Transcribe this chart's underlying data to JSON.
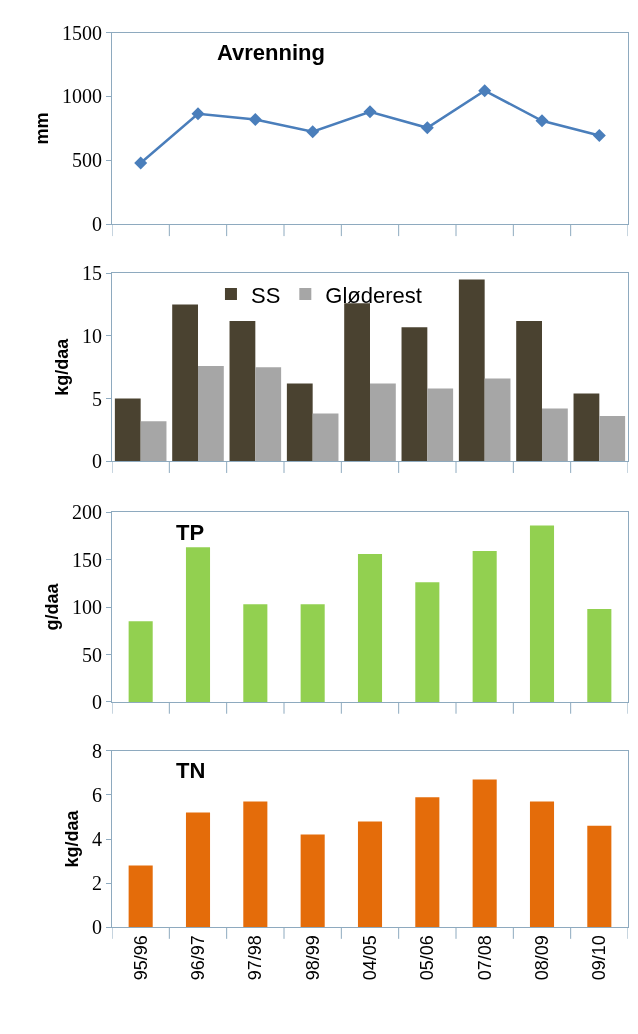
{
  "chart_data": [
    {
      "type": "line",
      "title": "Avrenning",
      "ylabel": "mm",
      "categories": [
        null,
        null,
        null,
        null,
        null,
        null,
        null,
        null,
        null
      ],
      "ylim": [
        0,
        1500
      ],
      "yticks": [
        0,
        500,
        1000,
        1500
      ],
      "marker": "diamond",
      "tick_labels": "y",
      "series": [
        {
          "color": "#4a7ebb",
          "values": [
            480,
            865,
            820,
            725,
            880,
            755,
            1045,
            810,
            695
          ]
        }
      ]
    },
    {
      "type": "bar",
      "ylabel": "kg/daa",
      "categories": [
        null,
        null,
        null,
        null,
        null,
        null,
        null,
        null,
        null
      ],
      "ylim": [
        0,
        15
      ],
      "yticks": [
        0,
        5,
        10,
        15
      ],
      "tick_labels": "y",
      "legend": "top",
      "series": [
        {
          "name": "SS",
          "color": "#4a4230",
          "values": [
            5.0,
            12.5,
            11.2,
            6.2,
            12.6,
            10.7,
            14.5,
            11.2,
            5.4
          ]
        },
        {
          "name": "Gløderest",
          "color": "#a6a6a6",
          "values": [
            3.2,
            7.6,
            7.5,
            3.8,
            6.2,
            5.8,
            6.6,
            4.2,
            3.6
          ]
        }
      ]
    },
    {
      "type": "bar",
      "title": "TP",
      "ylabel": "g/daa",
      "categories": [
        null,
        null,
        null,
        null,
        null,
        null,
        null,
        null,
        null
      ],
      "ylim": [
        0,
        200
      ],
      "yticks": [
        0,
        50,
        100,
        150,
        200
      ],
      "tick_labels": "y",
      "series": [
        {
          "color": "#92d050",
          "values": [
            85,
            163,
            103,
            103,
            156,
            126,
            159,
            186,
            98
          ]
        }
      ]
    },
    {
      "type": "bar",
      "title": "TN",
      "ylabel": "kg/daa",
      "categories": [
        "95/96",
        "96/97",
        "97/98",
        "98/99",
        "04/05",
        "05/06",
        "07/08",
        "08/09",
        "09/10"
      ],
      "ylim": [
        0,
        8
      ],
      "yticks": [
        0,
        2,
        4,
        6,
        8
      ],
      "series": [
        {
          "color": "#e46c0a",
          "values": [
            2.8,
            5.2,
            5.7,
            4.2,
            4.8,
            5.9,
            6.7,
            5.7,
            4.6
          ]
        }
      ]
    }
  ]
}
